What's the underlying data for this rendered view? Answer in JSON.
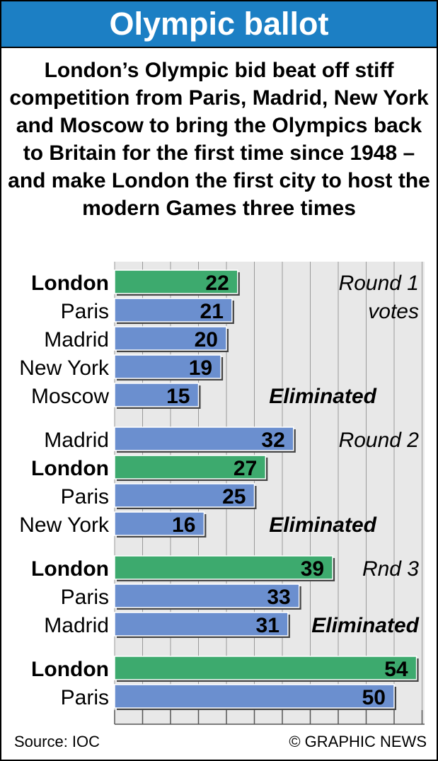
{
  "title": "Olympic ballot",
  "subtitle": "London’s Olympic bid beat off stiff competition from Paris, Madrid, New York and Moscow to bring the Olympics back to Britain for the first time since 1948 – and make London the first city to host the modern Games three times",
  "source": "Source: IOC",
  "credit": "© GRAPHIC NEWS",
  "colors": {
    "highlight": "#3daa6e",
    "bar": "#6b8fcf",
    "title_bg": "#1c7fc4",
    "grid_bg": "#e8e8e8"
  },
  "chart_data": {
    "type": "bar",
    "orientation": "horizontal",
    "xlim": [
      0,
      56
    ],
    "rounds": [
      {
        "label_lines": [
          "Round 1",
          "votes"
        ],
        "eliminated_label": "Eliminated",
        "bars": [
          {
            "city": "London",
            "value": 22,
            "highlight": true
          },
          {
            "city": "Paris",
            "value": 21,
            "highlight": false
          },
          {
            "city": "Madrid",
            "value": 20,
            "highlight": false
          },
          {
            "city": "New York",
            "value": 19,
            "highlight": false
          },
          {
            "city": "Moscow",
            "value": 15,
            "highlight": false,
            "eliminated": true
          }
        ]
      },
      {
        "label_lines": [
          "Round 2"
        ],
        "eliminated_label": "Eliminated",
        "bars": [
          {
            "city": "Madrid",
            "value": 32,
            "highlight": false
          },
          {
            "city": "London",
            "value": 27,
            "highlight": true
          },
          {
            "city": "Paris",
            "value": 25,
            "highlight": false
          },
          {
            "city": "New York",
            "value": 16,
            "highlight": false,
            "eliminated": true
          }
        ]
      },
      {
        "label_lines": [
          "Rnd 3"
        ],
        "eliminated_label": "Eliminated",
        "bars": [
          {
            "city": "London",
            "value": 39,
            "highlight": true
          },
          {
            "city": "Paris",
            "value": 33,
            "highlight": false
          },
          {
            "city": "Madrid",
            "value": 31,
            "highlight": false,
            "eliminated": true
          }
        ]
      },
      {
        "label_lines": [],
        "eliminated_label": "",
        "bars": [
          {
            "city": "London",
            "value": 54,
            "highlight": true
          },
          {
            "city": "Paris",
            "value": 50,
            "highlight": false
          }
        ]
      }
    ]
  }
}
